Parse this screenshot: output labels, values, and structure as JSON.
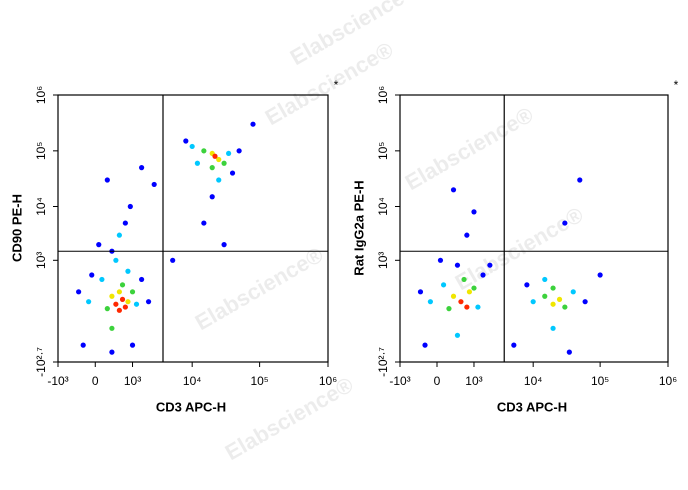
{
  "watermark": "Elabscience®",
  "chart_data": [
    {
      "type": "scatter",
      "xlabel": "CD3 APC-H",
      "ylabel": "CD90 PE-H",
      "annotation": "*",
      "xscale": "symlog",
      "yscale": "symlog",
      "xlim": [
        -1000,
        1000000
      ],
      "ylim": [
        -501,
        1000000
      ],
      "xticks": [
        {
          "value": -1000,
          "label": "-10³"
        },
        0,
        {
          "value": 1000,
          "label": "10³"
        },
        {
          "value": 10000,
          "label": "10⁴"
        },
        {
          "value": 100000,
          "label": "10⁵"
        },
        {
          "value": 1000000,
          "label": "10⁶"
        }
      ],
      "yticks": [
        {
          "value": -501,
          "label": "-10²·⁷"
        },
        {
          "value": 1000,
          "label": "10³"
        },
        {
          "value": 10000,
          "label": "10⁴"
        },
        {
          "value": 100000,
          "label": "10⁵"
        },
        {
          "value": 1000000,
          "label": "10⁶"
        }
      ],
      "gates": {
        "x": 3500,
        "y": 1500
      },
      "series": [
        {
          "color": "#0000ff",
          "x": [
            -300,
            1500,
            -200,
            2000,
            50,
            700,
            300,
            900,
            200,
            1500,
            8000,
            50000,
            40000,
            20000,
            15000,
            30000,
            5000,
            300,
            1000,
            80000,
            2500,
            -50
          ],
          "y": [
            200,
            400,
            -200,
            100,
            2000,
            5000,
            1500,
            10000,
            30000,
            50000,
            150000,
            100000,
            40000,
            15000,
            5000,
            2000,
            1000,
            -300,
            -200,
            300000,
            25000,
            500
          ]
        },
        {
          "color": "#00c8ff",
          "x": [
            100,
            1200,
            -100,
            800,
            400,
            10000,
            35000,
            12000,
            25000,
            500
          ],
          "y": [
            400,
            80,
            100,
            600,
            1000,
            120000,
            90000,
            60000,
            30000,
            3000
          ]
        },
        {
          "color": "#3cd23c",
          "x": [
            200,
            1000,
            600,
            300,
            15000,
            30000,
            20000
          ],
          "y": [
            50,
            200,
            300,
            -50,
            100000,
            60000,
            50000
          ]
        },
        {
          "color": "#f0e600",
          "x": [
            300,
            800,
            500,
            20000,
            25000
          ],
          "y": [
            150,
            100,
            200,
            90000,
            70000
          ]
        },
        {
          "color": "#ff2800",
          "x": [
            400,
            600,
            500,
            700,
            22000
          ],
          "y": [
            80,
            120,
            40,
            60,
            80000
          ]
        }
      ]
    },
    {
      "type": "scatter",
      "xlabel": "CD3 APC-H",
      "ylabel": "Rat IgG2a PE-H",
      "annotation": "*",
      "xscale": "symlog",
      "yscale": "symlog",
      "xlim": [
        -1000,
        1000000
      ],
      "ylim": [
        -501,
        1000000
      ],
      "xticks": [
        {
          "value": -1000,
          "label": "-10³"
        },
        0,
        {
          "value": 1000,
          "label": "10³"
        },
        {
          "value": 10000,
          "label": "10⁴"
        },
        {
          "value": 100000,
          "label": "10⁵"
        },
        {
          "value": 1000000,
          "label": "10⁶"
        }
      ],
      "yticks": [
        {
          "value": -501,
          "label": "-10²·⁷"
        },
        {
          "value": 1000,
          "label": "10³"
        },
        {
          "value": 10000,
          "label": "10⁴"
        },
        {
          "value": 100000,
          "label": "10⁵"
        },
        {
          "value": 1000000,
          "label": "10⁶"
        }
      ],
      "gates": {
        "x": 3500,
        "y": 1500
      },
      "series": [
        {
          "color": "#0000ff",
          "x": [
            -300,
            1500,
            -200,
            50,
            700,
            300,
            1000,
            8000,
            60000,
            100000,
            5000,
            30000,
            50000,
            2000,
            400,
            35000
          ],
          "y": [
            200,
            500,
            -200,
            1000,
            3000,
            20000,
            8000,
            300,
            100,
            500,
            -200,
            5000,
            30000,
            800,
            800,
            -300
          ]
        },
        {
          "color": "#00c8ff",
          "x": [
            100,
            1200,
            -100,
            400,
            10000,
            40000,
            20000,
            15000
          ],
          "y": [
            300,
            60,
            100,
            -100,
            100,
            200,
            -50,
            400
          ]
        },
        {
          "color": "#3cd23c",
          "x": [
            200,
            1000,
            600,
            15000,
            30000,
            20000
          ],
          "y": [
            50,
            250,
            400,
            150,
            60,
            250
          ]
        },
        {
          "color": "#f0e600",
          "x": [
            300,
            800,
            20000,
            25000
          ],
          "y": [
            150,
            200,
            80,
            120
          ]
        },
        {
          "color": "#ff2800",
          "x": [
            500,
            700
          ],
          "y": [
            100,
            60
          ]
        }
      ]
    }
  ]
}
